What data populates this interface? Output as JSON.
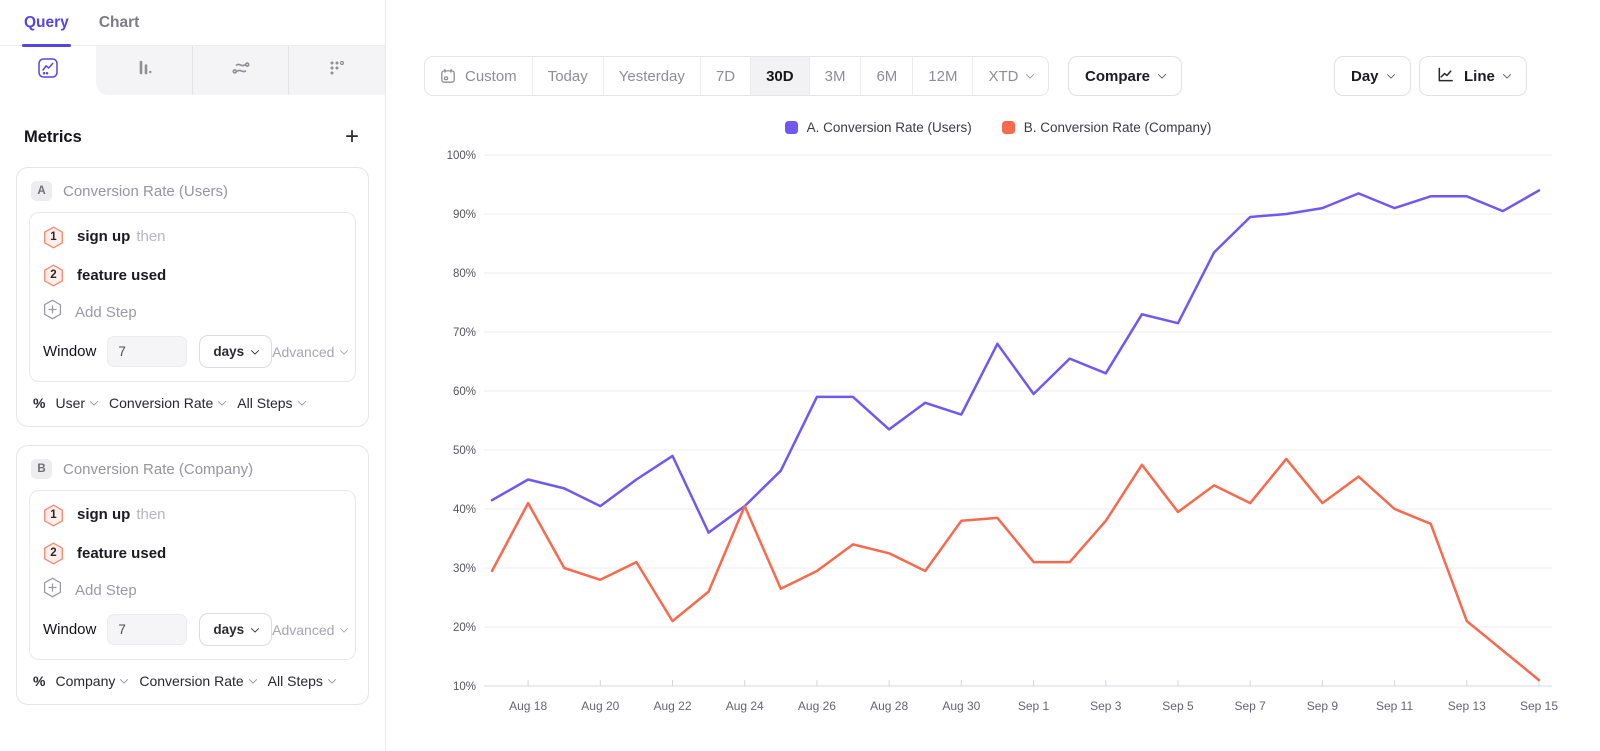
{
  "colors": {
    "accent": "#5546e4",
    "series_a": "#7158f0",
    "series_b": "#f76a4d",
    "grid": "#ededef",
    "axis": "#d9d9dd",
    "tick_label": "#55555b",
    "x_label": "#66666c"
  },
  "sidebar": {
    "tabs": [
      {
        "label": "Query"
      },
      {
        "label": "Chart"
      }
    ],
    "active_tab": "Query",
    "query_type_icons": [
      "line-chart",
      "bar-chart",
      "flow",
      "dots-grid"
    ],
    "metrics_header": {
      "title": "Metrics",
      "add_label": "+"
    },
    "metric_cards": [
      {
        "badge": "A",
        "title": "Conversion Rate (Users)",
        "steps": [
          {
            "num": "1",
            "event": "sign up",
            "suffix": "then"
          },
          {
            "num": "2",
            "event": "feature used",
            "suffix": ""
          }
        ],
        "add_step_label": "Add Step",
        "window": {
          "label": "Window",
          "value": "7",
          "unit": "days",
          "advanced_label": "Advanced"
        },
        "measurement": {
          "prefix": "%",
          "entity": "User",
          "metric": "Conversion Rate",
          "scope": "All Steps"
        }
      },
      {
        "badge": "B",
        "title": "Conversion Rate (Company)",
        "steps": [
          {
            "num": "1",
            "event": "sign up",
            "suffix": "then"
          },
          {
            "num": "2",
            "event": "feature used",
            "suffix": ""
          }
        ],
        "add_step_label": "Add Step",
        "window": {
          "label": "Window",
          "value": "7",
          "unit": "days",
          "advanced_label": "Advanced"
        },
        "measurement": {
          "prefix": "%",
          "entity": "Company",
          "metric": "Conversion Rate",
          "scope": "All Steps"
        }
      }
    ]
  },
  "toolbar": {
    "date_ranges": [
      {
        "label": "Custom",
        "icon": "calendar"
      },
      {
        "label": "Today"
      },
      {
        "label": "Yesterday"
      },
      {
        "label": "7D"
      },
      {
        "label": "30D"
      },
      {
        "label": "3M"
      },
      {
        "label": "6M"
      },
      {
        "label": "12M"
      },
      {
        "label": "XTD",
        "chevron": true
      }
    ],
    "selected_range": "30D",
    "compare_label": "Compare",
    "granularity_label": "Day",
    "chart_type_label": "Line"
  },
  "chart_data": {
    "type": "line",
    "title": "",
    "x": [
      "Aug 17",
      "Aug 18",
      "Aug 19",
      "Aug 20",
      "Aug 21",
      "Aug 22",
      "Aug 23",
      "Aug 24",
      "Aug 25",
      "Aug 26",
      "Aug 27",
      "Aug 28",
      "Aug 29",
      "Aug 30",
      "Aug 31",
      "Sep 1",
      "Sep 2",
      "Sep 3",
      "Sep 4",
      "Sep 5",
      "Sep 6",
      "Sep 7",
      "Sep 8",
      "Sep 9",
      "Sep 10",
      "Sep 11",
      "Sep 12",
      "Sep 13",
      "Sep 14",
      "Sep 15"
    ],
    "x_labeled_every": 2,
    "x_first_labeled_index": 1,
    "ylim": [
      10,
      100
    ],
    "y_ticks": [
      100,
      90,
      80,
      70,
      60,
      50,
      40,
      30,
      20,
      10
    ],
    "y_tick_suffix": "%",
    "grid": true,
    "legend_position": "top-center",
    "series": [
      {
        "name": "A. Conversion Rate (Users)",
        "color": "#7158f0",
        "values": [
          41.5,
          45,
          43.5,
          40.5,
          45,
          49,
          36,
          40.5,
          46.5,
          59,
          59,
          53.5,
          58,
          56,
          68,
          59.5,
          65.5,
          63,
          73,
          71.5,
          83.5,
          89.5,
          90,
          91,
          93.5,
          91,
          93,
          93,
          90.5,
          94
        ]
      },
      {
        "name": "B. Conversion Rate (Company)",
        "color": "#f76a4d",
        "values": [
          29.5,
          41,
          30,
          28,
          31,
          21,
          26,
          40.5,
          26.5,
          29.5,
          34,
          32.5,
          29.5,
          38,
          38.5,
          31,
          31,
          38,
          47.5,
          39.5,
          44,
          41,
          48.5,
          41,
          45.5,
          40,
          37.5,
          21,
          16,
          11
        ]
      }
    ]
  }
}
